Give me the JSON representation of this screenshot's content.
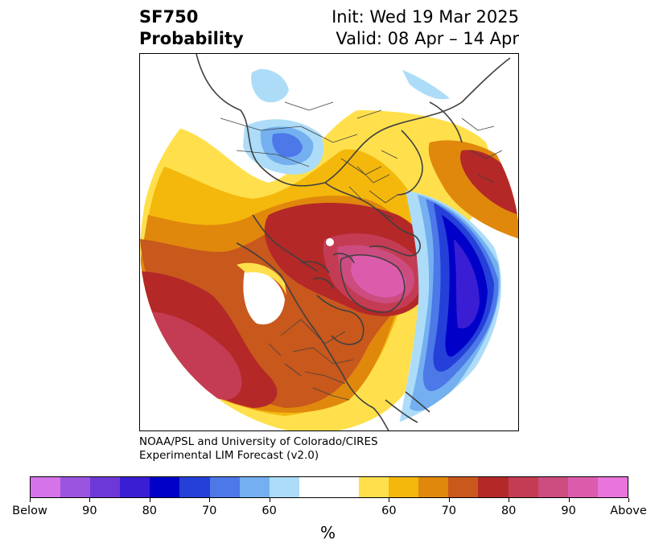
{
  "title": {
    "variable": "SF750",
    "product": "Probability",
    "init": "Init: Wed 19 Mar 2025",
    "valid": "Valid: 08 Apr – 14 Apr"
  },
  "credit": {
    "line1": "NOAA/PSL and University of Colorado/CIRES",
    "line2": "Experimental LIM Forecast (v2.0)"
  },
  "colorbar": {
    "unit_label": "%",
    "colors": [
      "#d474e8",
      "#9b54e0",
      "#6d38d8",
      "#3a1ed4",
      "#0000c8",
      "#2440d8",
      "#4c78e8",
      "#74b0f0",
      "#acdcf8",
      "#ffffff",
      "#ffe04c",
      "#f4b80c",
      "#e0880c",
      "#c8581c",
      "#b42828",
      "#c43c54",
      "#cc4c80",
      "#dc5cac",
      "#e874dc"
    ],
    "ticks": [
      "Below",
      "90",
      "80",
      "70",
      "60",
      "60",
      "70",
      "80",
      "90",
      "Above"
    ]
  },
  "map": {
    "projection": "north-polar-stereographic",
    "feature_colors": {
      "coastline": "#404040",
      "borders": "#404040"
    }
  }
}
